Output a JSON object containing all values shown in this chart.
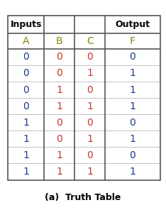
{
  "title_caption": "(a)  Truth Table",
  "inputs_header": "Inputs",
  "output_header": "Output",
  "col_headers": [
    "A",
    "B",
    "C",
    "F"
  ],
  "col_header_color": "#8B8000",
  "section_header_color": "#000000",
  "rows": [
    [
      0,
      0,
      0,
      0
    ],
    [
      0,
      0,
      1,
      1
    ],
    [
      0,
      1,
      0,
      1
    ],
    [
      0,
      1,
      1,
      1
    ],
    [
      1,
      0,
      0,
      0
    ],
    [
      1,
      0,
      1,
      1
    ],
    [
      1,
      1,
      0,
      0
    ],
    [
      1,
      1,
      1,
      1
    ]
  ],
  "col_A_color": "#1a3a8f",
  "col_B_color": "#c0392b",
  "col_C_color": "#c0392b",
  "col_F_color": "#1a3a8f",
  "border_color": "#555555",
  "bg_color": "#ffffff",
  "caption_color": "#000000",
  "figsize": [
    2.34,
    2.96
  ],
  "dpi": 100
}
